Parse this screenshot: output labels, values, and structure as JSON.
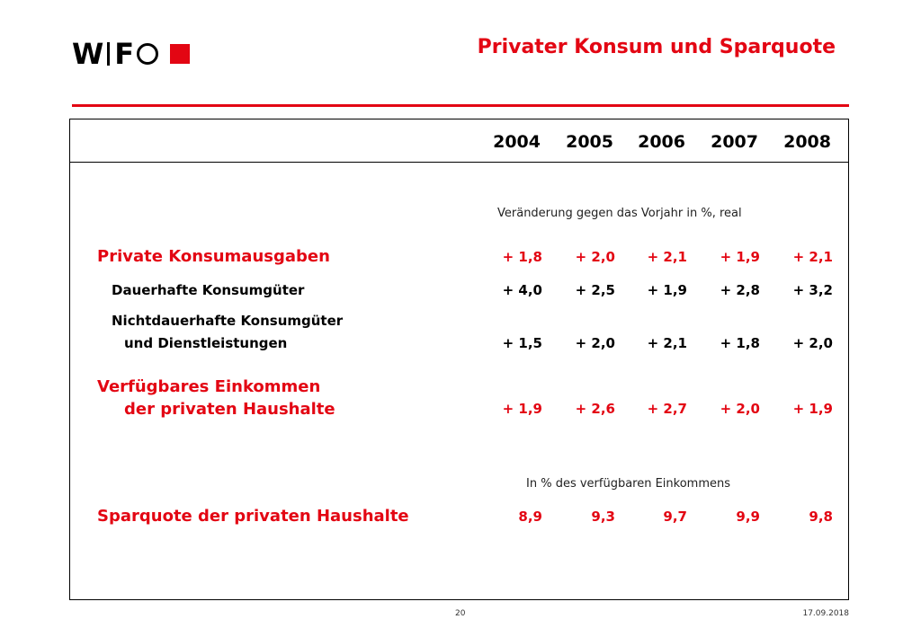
{
  "logo": {
    "letters": [
      "W",
      "F"
    ]
  },
  "title": "Privater Konsum und Sparquote",
  "colors": {
    "accent": "#e30613",
    "text": "#000000"
  },
  "years": [
    "2004",
    "2005",
    "2006",
    "2007",
    "2008"
  ],
  "subheading_change": "Veränderung gegen das Vorjahr in %, real",
  "subheading_share": "In % des verfügbaren Einkommens",
  "rows": [
    {
      "label": "Private Konsumausgaben",
      "values": [
        "+ 1,8",
        "+ 2,0",
        "+ 2,1",
        "+ 1,9",
        "+ 2,1"
      ]
    },
    {
      "label": "Dauerhafte Konsumgüter",
      "values": [
        "+ 4,0",
        "+ 2,5",
        "+ 1,9",
        "+ 2,8",
        "+ 3,2"
      ]
    },
    {
      "label_line1": "Nichtdauerhafte Konsumgüter",
      "label_line2": "und Dienstleistungen",
      "values": [
        "+ 1,5",
        "+ 2,0",
        "+ 2,1",
        "+ 1,8",
        "+ 2,0"
      ]
    },
    {
      "label_line1": "Verfügbares Einkommen",
      "label_line2": "der privaten Haushalte",
      "values": [
        "+ 1,9",
        "+ 2,6",
        "+ 2,7",
        "+ 2,0",
        "+ 1,9"
      ]
    },
    {
      "label": "Sparquote der privaten Haushalte",
      "values": [
        "8,9",
        "9,3",
        "9,7",
        "9,9",
        "9,8"
      ]
    }
  ],
  "footer": {
    "page": "20",
    "date": "17.09.2018"
  }
}
